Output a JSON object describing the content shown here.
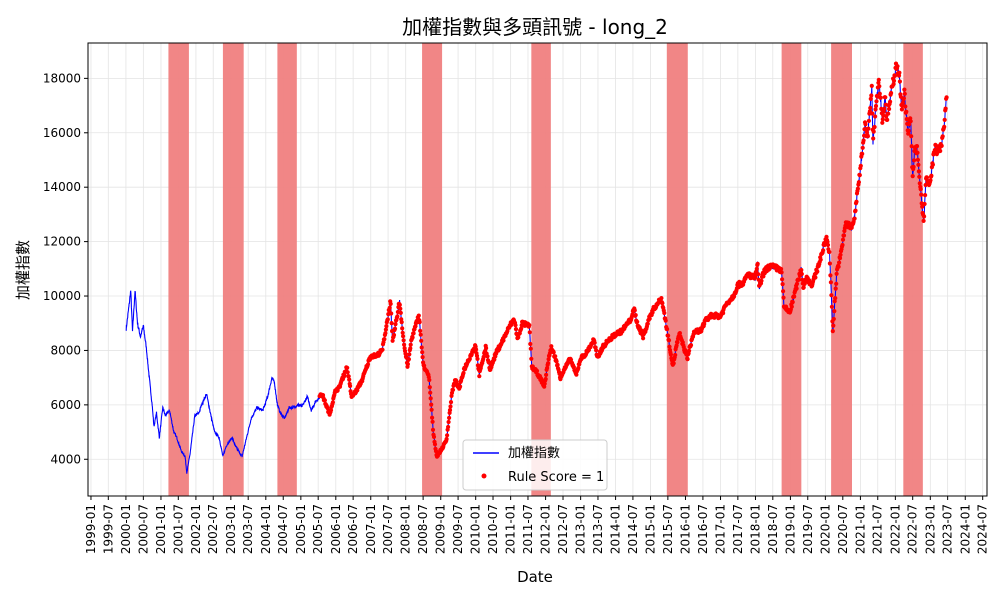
{
  "chart_data": {
    "type": "line",
    "title": "加權指數與多頭訊號 - long_2",
    "xlabel": "Date",
    "ylabel": "加權指數",
    "x_range": [
      "1998-12-01",
      "2024-08-15"
    ],
    "ylim": [
      2650,
      19300
    ],
    "y_ticks": [
      4000,
      6000,
      8000,
      10000,
      12000,
      14000,
      16000,
      18000
    ],
    "x_tick_labels": [
      "1999-01",
      "1999-07",
      "2000-01",
      "2000-07",
      "2001-01",
      "2001-07",
      "2002-01",
      "2002-07",
      "2003-01",
      "2003-07",
      "2004-01",
      "2004-07",
      "2005-01",
      "2005-07",
      "2006-01",
      "2006-07",
      "2007-01",
      "2007-07",
      "2008-01",
      "2008-07",
      "2009-01",
      "2009-07",
      "2010-01",
      "2010-07",
      "2011-01",
      "2011-07",
      "2012-01",
      "2012-07",
      "2013-01",
      "2013-07",
      "2014-01",
      "2014-07",
      "2015-01",
      "2015-07",
      "2016-01",
      "2016-07",
      "2017-01",
      "2017-07",
      "2018-01",
      "2018-07",
      "2019-01",
      "2019-07",
      "2020-01",
      "2020-07",
      "2021-01",
      "2021-07",
      "2022-01",
      "2022-07",
      "2023-01",
      "2023-07",
      "2024-01",
      "2024-07"
    ],
    "grid": true,
    "legend_position": "bottom-center",
    "colors": {
      "line": "#0000ff",
      "signal": "#ff0000",
      "span": "#f08080"
    },
    "series": [
      {
        "name": "加權指數",
        "kind": "line",
        "points": [
          [
            "2000-01-04",
            8800
          ],
          [
            "2000-02-01",
            9600
          ],
          [
            "2000-02-20",
            10200
          ],
          [
            "2000-03-10",
            8700
          ],
          [
            "2000-04-05",
            10200
          ],
          [
            "2000-05-01",
            9000
          ],
          [
            "2000-06-01",
            8500
          ],
          [
            "2000-07-01",
            8900
          ],
          [
            "2000-08-01",
            8100
          ],
          [
            "2000-09-01",
            7000
          ],
          [
            "2000-10-01",
            6000
          ],
          [
            "2000-10-20",
            5200
          ],
          [
            "2000-11-15",
            5700
          ],
          [
            "2000-12-15",
            4800
          ],
          [
            "2001-01-20",
            5900
          ],
          [
            "2001-02-15",
            5600
          ],
          [
            "2001-04-01",
            5800
          ],
          [
            "2001-05-15",
            5000
          ],
          [
            "2001-06-15",
            4800
          ],
          [
            "2001-08-01",
            4300
          ],
          [
            "2001-09-10",
            4100
          ],
          [
            "2001-09-28",
            3500
          ],
          [
            "2001-11-01",
            4200
          ],
          [
            "2001-12-20",
            5600
          ],
          [
            "2002-02-01",
            5700
          ],
          [
            "2002-03-01",
            6000
          ],
          [
            "2002-04-22",
            6400
          ],
          [
            "2002-06-01",
            5700
          ],
          [
            "2002-07-15",
            5000
          ],
          [
            "2002-09-01",
            4800
          ],
          [
            "2002-10-10",
            4100
          ],
          [
            "2002-11-15",
            4500
          ],
          [
            "2003-01-15",
            4800
          ],
          [
            "2003-02-15",
            4500
          ],
          [
            "2003-04-28",
            4100
          ],
          [
            "2003-06-01",
            4600
          ],
          [
            "2003-08-01",
            5500
          ],
          [
            "2003-10-01",
            5900
          ],
          [
            "2003-12-01",
            5800
          ],
          [
            "2004-01-20",
            6300
          ],
          [
            "2004-03-05",
            7000
          ],
          [
            "2004-04-01",
            6800
          ],
          [
            "2004-05-01",
            6000
          ],
          [
            "2004-06-01",
            5700
          ],
          [
            "2004-07-15",
            5500
          ],
          [
            "2004-09-01",
            5900
          ],
          [
            "2004-10-15",
            5900
          ],
          [
            "2004-12-01",
            6000
          ],
          [
            "2005-01-15",
            5950
          ],
          [
            "2005-03-10",
            6300
          ],
          [
            "2005-04-20",
            5800
          ],
          [
            "2005-06-01",
            6100
          ],
          [
            "2005-08-10",
            6400
          ],
          [
            "2005-10-28",
            5650
          ],
          [
            "2005-12-31",
            6550
          ],
          [
            "2006-02-01",
            6600
          ],
          [
            "2006-04-28",
            7400
          ],
          [
            "2006-06-15",
            6300
          ],
          [
            "2006-08-01",
            6500
          ],
          [
            "2006-10-01",
            6900
          ],
          [
            "2006-12-31",
            7800
          ],
          [
            "2007-03-01",
            7800
          ],
          [
            "2007-05-01",
            8000
          ],
          [
            "2007-07-26",
            9800
          ],
          [
            "2007-08-17",
            8300
          ],
          [
            "2007-10-29",
            9800
          ],
          [
            "2007-12-15",
            8200
          ],
          [
            "2008-01-22",
            7400
          ],
          [
            "2008-03-01",
            8400
          ],
          [
            "2008-05-19",
            9300
          ],
          [
            "2008-07-01",
            7500
          ],
          [
            "2008-09-01",
            7000
          ],
          [
            "2008-10-15",
            5000
          ],
          [
            "2008-11-20",
            4100
          ],
          [
            "2009-01-15",
            4400
          ],
          [
            "2009-03-01",
            4700
          ],
          [
            "2009-05-01",
            6500
          ],
          [
            "2009-06-01",
            6900
          ],
          [
            "2009-07-15",
            6600
          ],
          [
            "2009-09-01",
            7300
          ],
          [
            "2009-12-31",
            8200
          ],
          [
            "2010-02-08",
            7100
          ],
          [
            "2010-04-15",
            8100
          ],
          [
            "2010-06-01",
            7300
          ],
          [
            "2010-08-01",
            7900
          ],
          [
            "2010-10-01",
            8300
          ],
          [
            "2010-12-31",
            8950
          ],
          [
            "2011-02-08",
            9150
          ],
          [
            "2011-03-15",
            8400
          ],
          [
            "2011-05-01",
            9000
          ],
          [
            "2011-07-15",
            8900
          ],
          [
            "2011-08-10",
            7400
          ],
          [
            "2011-10-01",
            7200
          ],
          [
            "2011-12-20",
            6700
          ],
          [
            "2012-02-01",
            7700
          ],
          [
            "2012-03-01",
            8100
          ],
          [
            "2012-04-15",
            7700
          ],
          [
            "2012-06-04",
            7000
          ],
          [
            "2012-07-15",
            7300
          ],
          [
            "2012-09-15",
            7700
          ],
          [
            "2012-11-15",
            7100
          ],
          [
            "2012-12-31",
            7700
          ],
          [
            "2013-03-01",
            7900
          ],
          [
            "2013-05-20",
            8400
          ],
          [
            "2013-06-24",
            7700
          ],
          [
            "2013-08-15",
            8100
          ],
          [
            "2013-10-01",
            8300
          ],
          [
            "2013-12-31",
            8600
          ],
          [
            "2014-03-01",
            8700
          ],
          [
            "2014-06-01",
            9100
          ],
          [
            "2014-07-15",
            9500
          ],
          [
            "2014-08-15",
            9000
          ],
          [
            "2014-10-15",
            8500
          ],
          [
            "2014-12-31",
            9300
          ],
          [
            "2015-02-15",
            9600
          ],
          [
            "2015-04-27",
            9900
          ],
          [
            "2015-06-01",
            9200
          ],
          [
            "2015-08-24",
            7400
          ],
          [
            "2015-09-30",
            8200
          ],
          [
            "2015-11-01",
            8600
          ],
          [
            "2016-01-21",
            7700
          ],
          [
            "2016-02-15",
            8100
          ],
          [
            "2016-04-01",
            8700
          ],
          [
            "2016-06-01",
            8700
          ],
          [
            "2016-08-01",
            9100
          ],
          [
            "2016-10-01",
            9300
          ],
          [
            "2016-12-31",
            9250
          ],
          [
            "2017-03-01",
            9700
          ],
          [
            "2017-05-15",
            10000
          ],
          [
            "2017-07-01",
            10400
          ],
          [
            "2017-09-01",
            10500
          ],
          [
            "2017-10-15",
            10800
          ],
          [
            "2017-12-31",
            10650
          ],
          [
            "2018-01-22",
            11250
          ],
          [
            "2018-02-08",
            10300
          ],
          [
            "2018-04-01",
            10900
          ],
          [
            "2018-06-01",
            11100
          ],
          [
            "2018-09-01",
            11000
          ],
          [
            "2018-10-01",
            10900
          ],
          [
            "2018-10-26",
            9600
          ],
          [
            "2018-12-26",
            9400
          ],
          [
            "2019-03-01",
            10300
          ],
          [
            "2019-04-25",
            11000
          ],
          [
            "2019-05-15",
            10300
          ],
          [
            "2019-06-15",
            10700
          ],
          [
            "2019-08-15",
            10400
          ],
          [
            "2019-10-01",
            10900
          ],
          [
            "2019-12-31",
            12000
          ],
          [
            "2020-01-15",
            12150
          ],
          [
            "2020-02-15",
            11500
          ],
          [
            "2020-03-19",
            8700
          ],
          [
            "2020-04-30",
            10900
          ],
          [
            "2020-06-15",
            11600
          ],
          [
            "2020-07-31",
            12700
          ],
          [
            "2020-09-30",
            12500
          ],
          [
            "2020-11-01",
            12900
          ],
          [
            "2020-12-31",
            14700
          ],
          [
            "2021-02-18",
            16300
          ],
          [
            "2021-03-15",
            15800
          ],
          [
            "2021-04-30",
            17600
          ],
          [
            "2021-05-12",
            15600
          ],
          [
            "2021-06-15",
            17100
          ],
          [
            "2021-07-15",
            17900
          ],
          [
            "2021-08-20",
            16400
          ],
          [
            "2021-09-15",
            17300
          ],
          [
            "2021-10-05",
            16400
          ],
          [
            "2021-11-15",
            17500
          ],
          [
            "2021-12-31",
            18200
          ],
          [
            "2022-01-05",
            18500
          ],
          [
            "2022-02-10",
            18200
          ],
          [
            "2022-03-08",
            16900
          ],
          [
            "2022-04-05",
            17500
          ],
          [
            "2022-05-10",
            16000
          ],
          [
            "2022-06-10",
            16500
          ],
          [
            "2022-07-01",
            14300
          ],
          [
            "2022-07-20",
            15300
          ],
          [
            "2022-08-15",
            15400
          ],
          [
            "2022-09-01",
            14700
          ],
          [
            "2022-10-25",
            12700
          ],
          [
            "2022-11-15",
            14300
          ],
          [
            "2022-12-31",
            14100
          ],
          [
            "2023-02-15",
            15500
          ],
          [
            "2023-03-15",
            15300
          ],
          [
            "2023-04-25",
            15500
          ],
          [
            "2023-05-31",
            16500
          ],
          [
            "2023-06-20",
            17300
          ]
        ]
      },
      {
        "name": "Rule Score = 1",
        "kind": "scatter",
        "x_start": "2005-07-15",
        "x_end": "2023-06-20"
      }
    ],
    "shaded_regions": [
      [
        "2001-03-20",
        "2001-10-20"
      ],
      [
        "2002-10-10",
        "2003-05-15"
      ],
      [
        "2004-05-01",
        "2004-11-20"
      ],
      [
        "2008-06-20",
        "2009-01-15"
      ],
      [
        "2011-08-05",
        "2012-02-25"
      ],
      [
        "2015-06-20",
        "2016-01-25"
      ],
      [
        "2018-10-01",
        "2019-04-25"
      ],
      [
        "2020-03-01",
        "2020-10-05"
      ],
      [
        "2022-03-25",
        "2022-10-15"
      ]
    ]
  }
}
